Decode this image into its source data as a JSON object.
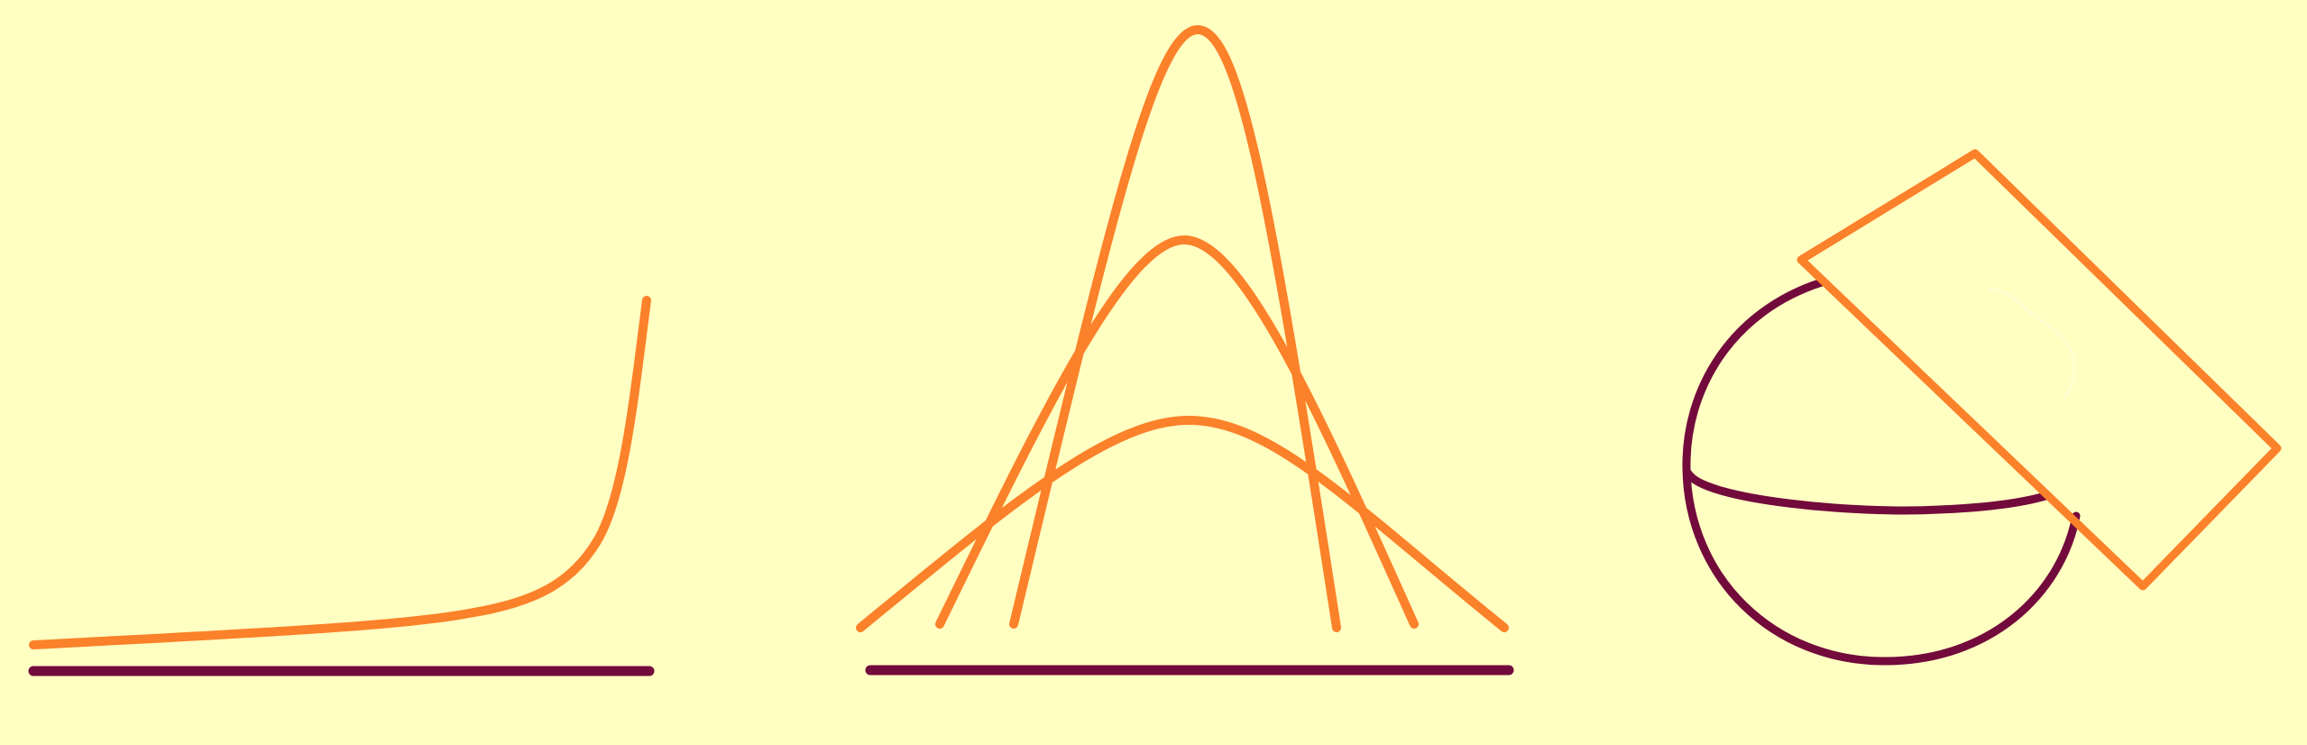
{
  "colors": {
    "background": "#FFFFC2",
    "accent": "#FB812A",
    "dark": "#730A3C",
    "highlight": "#FFFFD0"
  },
  "panels": [
    {
      "name": "exponential-growth",
      "shape": "exponential curve above baseline"
    },
    {
      "name": "normal-distributions",
      "shape": "three bell curves of increasing spread above baseline"
    },
    {
      "name": "sphere-and-plane",
      "shape": "sphere with equator intersected by a tilted rectangular plane"
    }
  ]
}
